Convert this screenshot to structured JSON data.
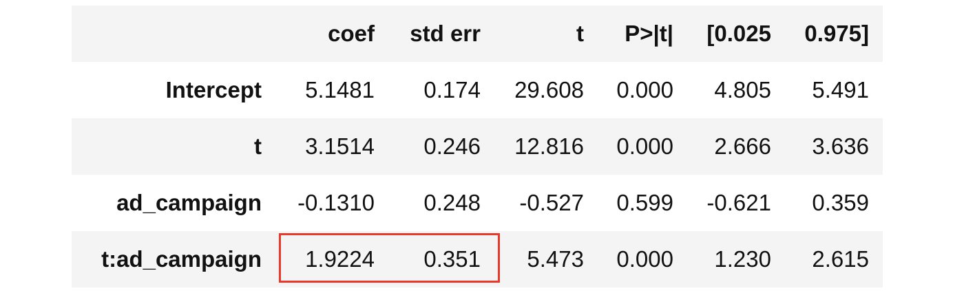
{
  "table": {
    "columns": [
      "",
      "coef",
      "std err",
      "t",
      "P>|t|",
      "[0.025",
      "0.975]"
    ],
    "rows": [
      {
        "label": "Intercept",
        "values": [
          "5.1481",
          "0.174",
          "29.608",
          "0.000",
          "4.805",
          "5.491"
        ]
      },
      {
        "label": "t",
        "values": [
          "3.1514",
          "0.246",
          "12.816",
          "0.000",
          "2.666",
          "3.636"
        ]
      },
      {
        "label": "ad_campaign",
        "values": [
          "-0.1310",
          "0.248",
          "-0.527",
          "0.599",
          "-0.621",
          "0.359"
        ]
      },
      {
        "label": "t:ad_campaign",
        "values": [
          "1.9224",
          "0.351",
          "5.473",
          "0.000",
          "1.230",
          "2.615"
        ]
      }
    ]
  },
  "highlight": {
    "color": "#e8392b",
    "row": "t:ad_campaign",
    "columns": [
      "coef",
      "std err"
    ]
  }
}
